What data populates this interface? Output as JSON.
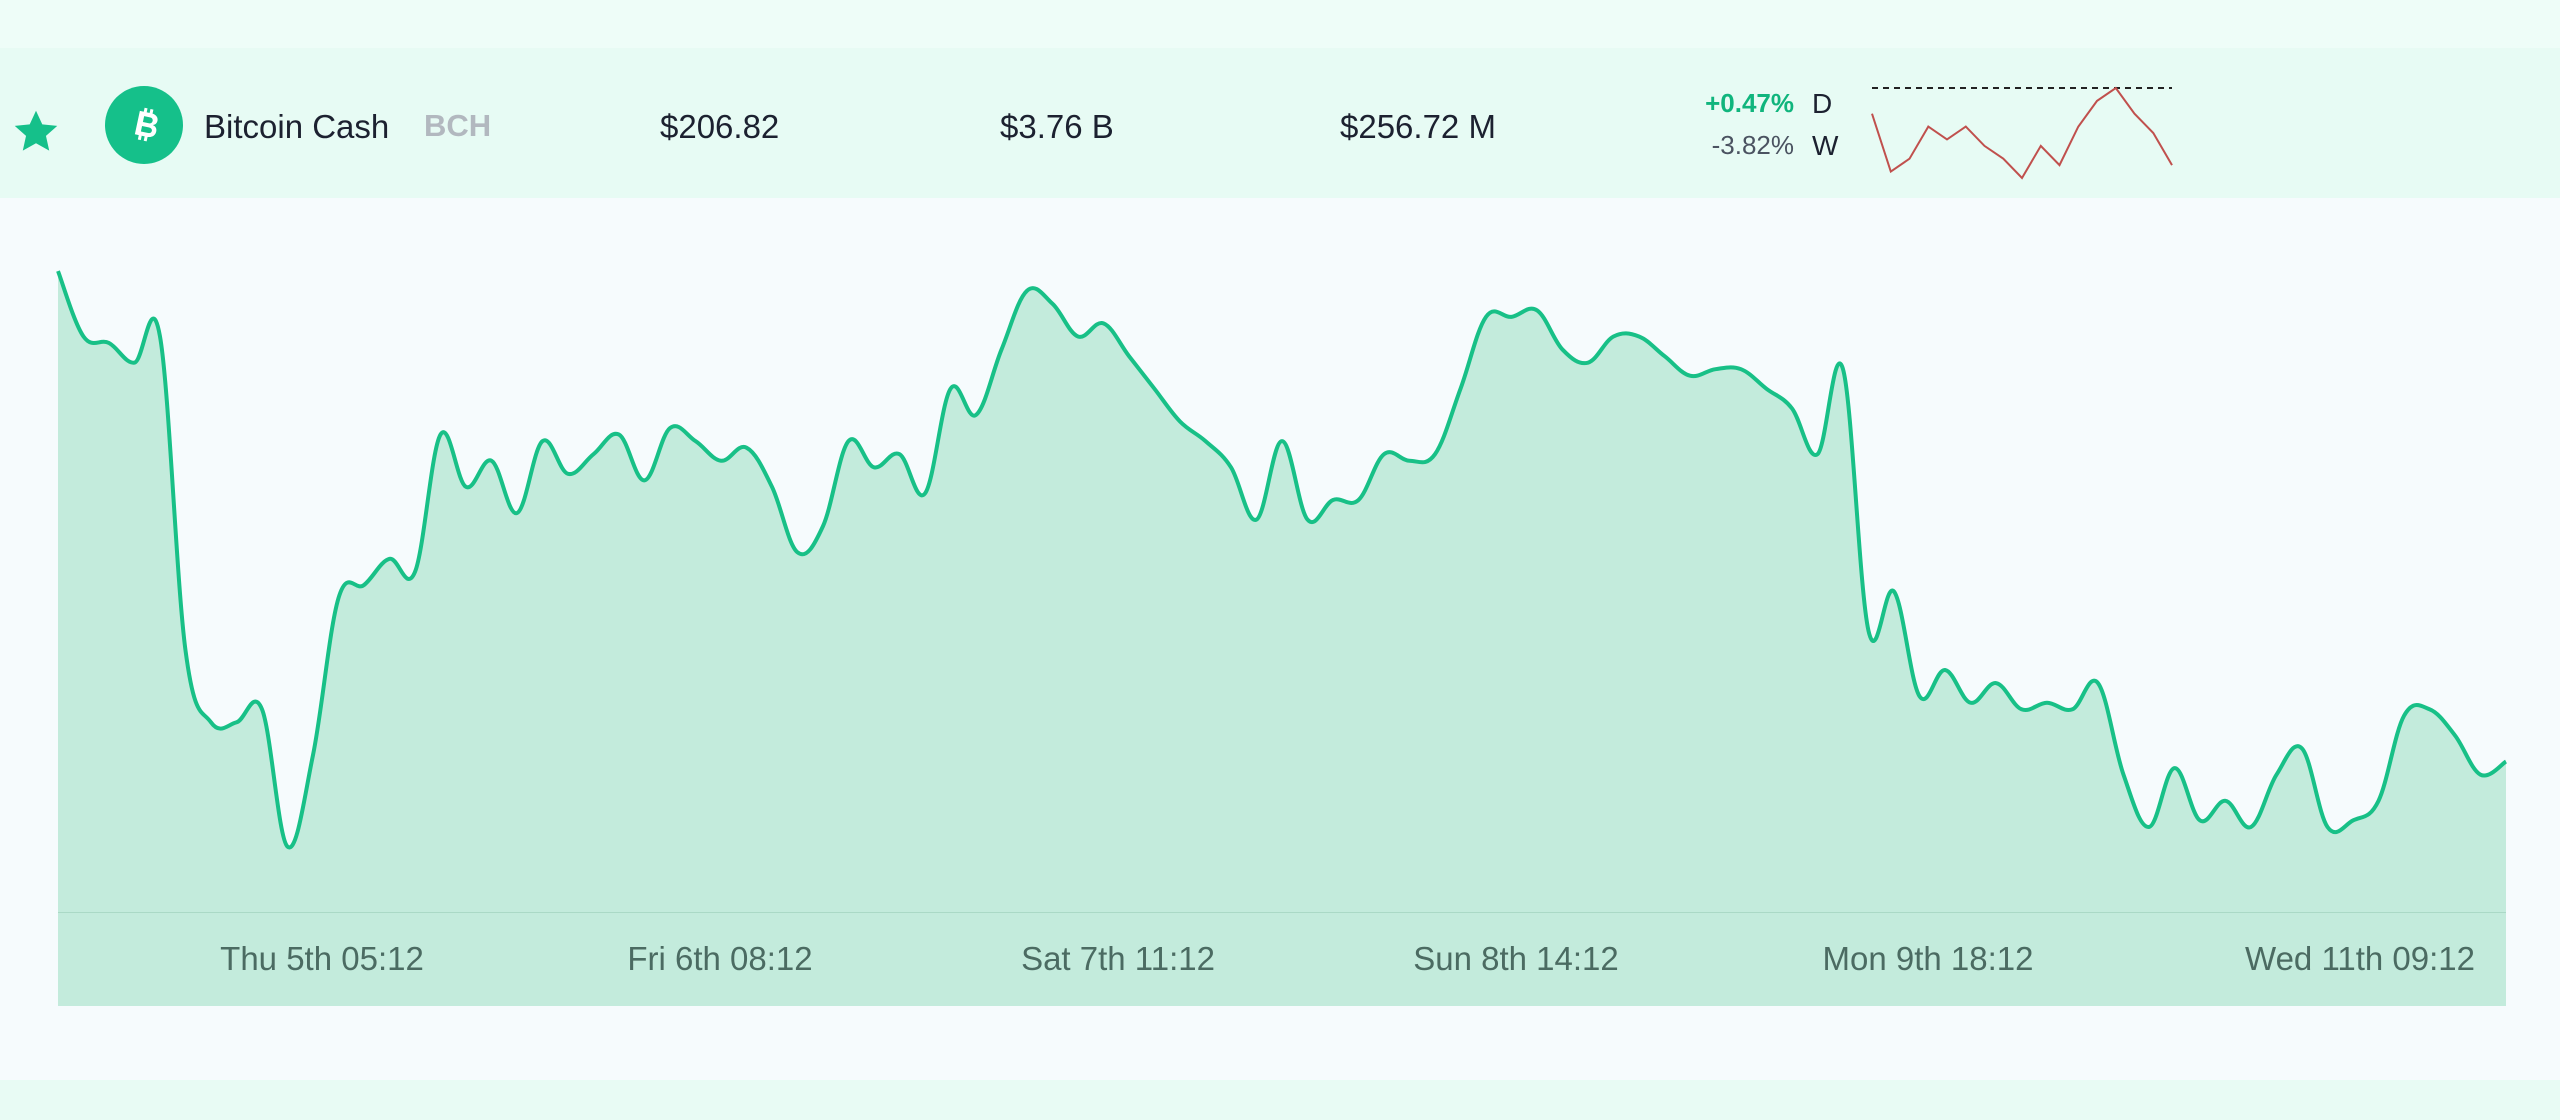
{
  "coin": {
    "name": "Bitcoin Cash",
    "symbol": "BCH",
    "price": "$206.82",
    "market_cap": "$3.76 B",
    "volume": "$256.72 M",
    "change_day": "+0.47%",
    "change_week": "-3.82%",
    "period_day": "D",
    "period_week": "W",
    "icons": [
      "star-icon",
      "bitcoin-cash-logo-icon"
    ],
    "colors": {
      "accent": "#15c08a",
      "positive": "#10b57d",
      "negative_sparkline": "#c0504d"
    }
  },
  "chart_data": {
    "type": "area",
    "xlabels": [
      "Thu 5th 05:12",
      "Fri 6th 08:12",
      "Sat 7th 11:12",
      "Sun 8th 14:12",
      "Mon 9th 18:12",
      "Wed 11th 09:12"
    ],
    "values": [
      98,
      88,
      87,
      84,
      88,
      40,
      29,
      29,
      31,
      10,
      24,
      48,
      50,
      54,
      52,
      73,
      65,
      69,
      61,
      72,
      67,
      70,
      73,
      66,
      74,
      72,
      69,
      71,
      65,
      55,
      59,
      72,
      68,
      70,
      64,
      80,
      76,
      86,
      95,
      93,
      88,
      90,
      85,
      80,
      75,
      72,
      68,
      60,
      72,
      60,
      63,
      63,
      70,
      69,
      70,
      80,
      91,
      91,
      92,
      86,
      84,
      88,
      88,
      85,
      82,
      83,
      83,
      80,
      77,
      70,
      83,
      43,
      49,
      33,
      37,
      32,
      35,
      31,
      32,
      31,
      35,
      21,
      13,
      22,
      14,
      17,
      13,
      21,
      25,
      13,
      14,
      17,
      30,
      31,
      27,
      21,
      23
    ],
    "ylim": [
      0,
      100
    ],
    "fill": "#c3ebdc",
    "stroke": "#18c087",
    "grid": false
  },
  "sparkline_data": {
    "type": "line",
    "values": [
      2.0,
      1.1,
      1.3,
      1.8,
      1.6,
      1.8,
      1.5,
      1.3,
      1.0,
      1.5,
      1.2,
      1.8,
      2.2,
      2.4,
      2.0,
      1.7,
      1.2
    ],
    "reference_line": "dashed"
  }
}
